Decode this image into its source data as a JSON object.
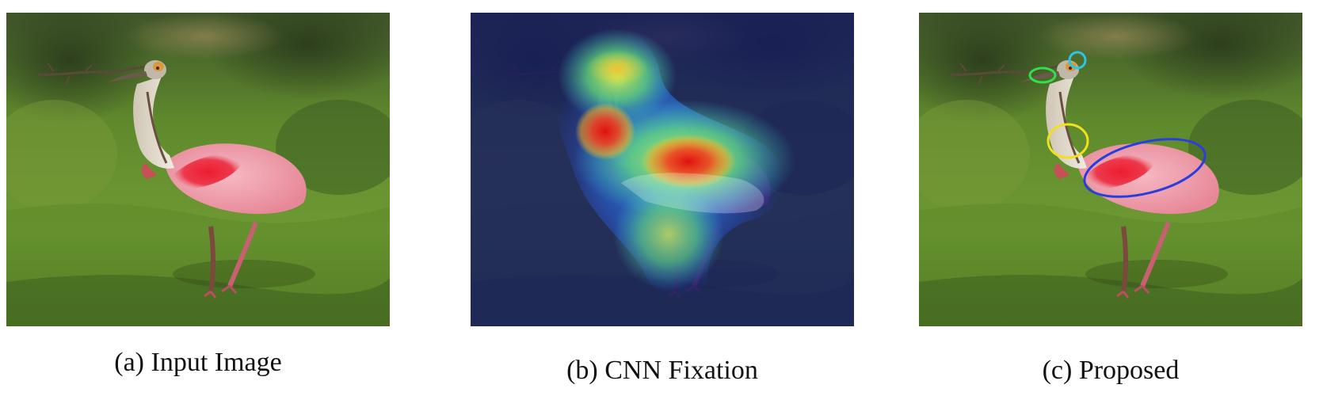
{
  "figure": {
    "panels": [
      {
        "id": "a",
        "caption": "(a) Input Image",
        "content": "input-photo"
      },
      {
        "id": "b",
        "caption": "(b) CNN Fixation",
        "content": "heatmap-overlay"
      },
      {
        "id": "c",
        "caption": "(c) Proposed",
        "content": "annotated-photo"
      }
    ],
    "colors": {
      "grass_dark": "#3e5a1c",
      "grass_light": "#6f9a34",
      "bird_pink": "#f0a0b0",
      "wing_red": "#e8283a",
      "neck_white": "#e6e0d4",
      "heat_background": "#1a1f6e",
      "ellipse_green": "#2ee04a",
      "ellipse_cyan": "#29c6e6",
      "ellipse_yellow": "#f0e020",
      "ellipse_blue": "#2a3ee0"
    }
  }
}
